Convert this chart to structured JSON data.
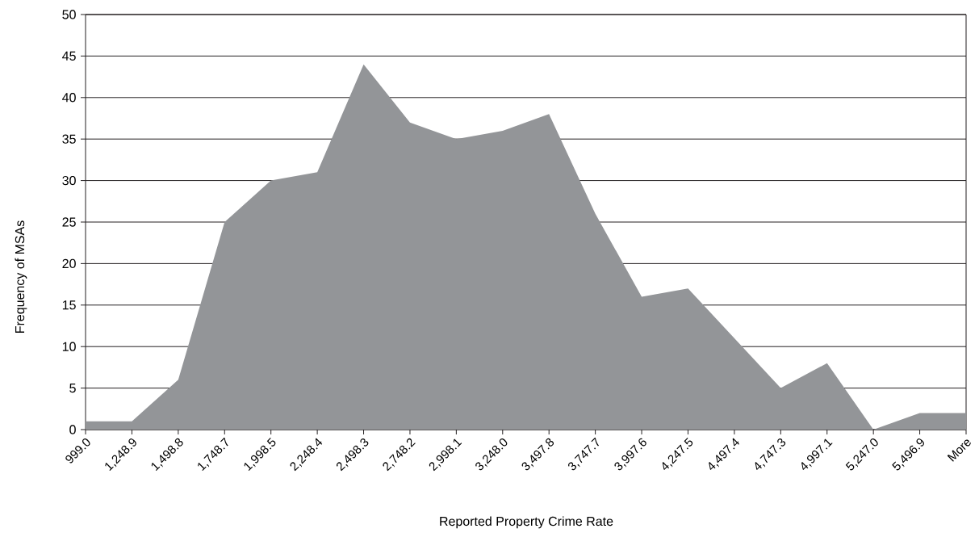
{
  "chart_data": {
    "type": "area",
    "xlabel": "Reported Property Crime Rate",
    "ylabel": "Frequency of MSAs",
    "categories": [
      "999.0",
      "1,248.9",
      "1,498.8",
      "1,748.7",
      "1,998.5",
      "2,248.4",
      "2,498.3",
      "2,748.2",
      "2,998.1",
      "3,248.0",
      "3,497.8",
      "3,747.7",
      "3,997.6",
      "4,247.5",
      "4,497.4",
      "4,747.3",
      "4,997.1",
      "5,247.0",
      "5,496.9",
      "More"
    ],
    "values": [
      1,
      1,
      6,
      25,
      30,
      31,
      44,
      37,
      35,
      36,
      38,
      26,
      16,
      17,
      11,
      5,
      8,
      0,
      2,
      2
    ],
    "color": "#939598",
    "ylim": [
      0,
      50
    ],
    "yticks": [
      0,
      5,
      10,
      15,
      20,
      25,
      30,
      35,
      40,
      45,
      50
    ],
    "grid": "y"
  }
}
